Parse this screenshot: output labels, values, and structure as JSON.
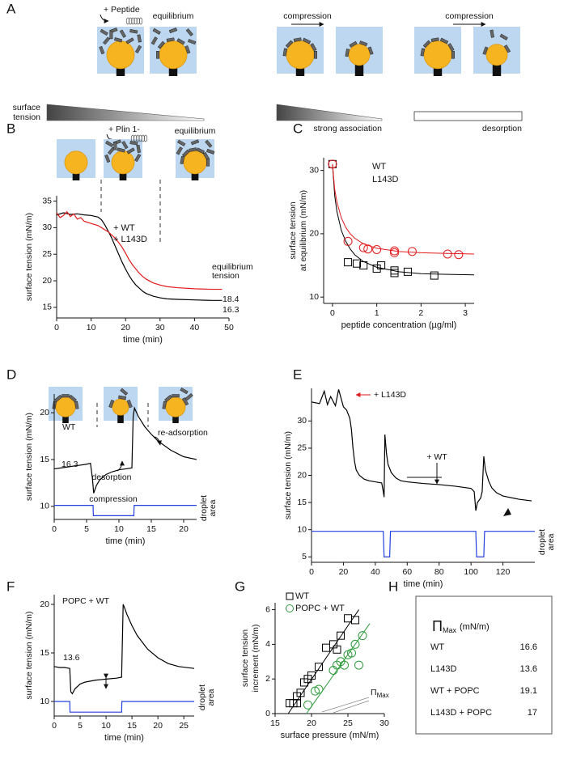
{
  "panel_labels": [
    "A",
    "B",
    "C",
    "D",
    "E",
    "F",
    "G",
    "H"
  ],
  "diagram_A": {
    "peptide": "+ Peptide",
    "equilibrium": "equilibrium",
    "surface_tension": [
      "surface",
      "tension"
    ],
    "compression_1": "compression",
    "compression_2": "compression",
    "strong_association": "strong association",
    "desorption": "desorption"
  },
  "diagram_B": {
    "plin": "+ Plin 1-",
    "equilibrium": "equilibrium"
  },
  "chart_data": [
    {
      "type": "line",
      "xlabel": "time (min)",
      "ylabel": [
        "surface tension (mN/m)"
      ],
      "xlim": [
        0,
        50
      ],
      "ylim": [
        13,
        36
      ],
      "xticks": [
        0,
        10,
        20,
        30,
        40,
        50
      ],
      "yticks": [
        15,
        20,
        25,
        30,
        35
      ],
      "series": [
        {
          "name": "+ WT",
          "color": "#000000",
          "x": [
            0,
            2,
            4,
            6,
            8,
            10,
            12,
            13,
            14,
            15,
            16,
            17,
            18,
            19,
            20,
            21,
            22,
            23,
            24,
            25,
            26,
            28,
            30,
            32,
            35,
            40,
            45,
            48
          ],
          "values": [
            32.4,
            32.8,
            32.5,
            32.6,
            32.4,
            32.3,
            32.0,
            31.5,
            30.5,
            29.3,
            28,
            26.5,
            25,
            23.5,
            22.2,
            21,
            20,
            19.2,
            18.6,
            18,
            17.6,
            17.1,
            16.8,
            16.6,
            16.5,
            16.4,
            16.3,
            16.3
          ]
        },
        {
          "name": "+ L143D",
          "color": "#e31a1c",
          "x": [
            0,
            1,
            2,
            3,
            4,
            5,
            6,
            7,
            8,
            10,
            12,
            13,
            14,
            15,
            16,
            17,
            18,
            19,
            20,
            21,
            22,
            23,
            24,
            25,
            26,
            28,
            30,
            32,
            35,
            40,
            45,
            48
          ],
          "values": [
            32.8,
            31.9,
            32.3,
            33.0,
            32.1,
            32.6,
            31.6,
            31.9,
            31.2,
            30.8,
            30.4,
            30.0,
            29.6,
            29.2,
            28.6,
            28,
            27.2,
            26.3,
            25.2,
            24,
            23,
            22.2,
            21.4,
            20.8,
            20.3,
            19.6,
            19.2,
            18.9,
            18.7,
            18.5,
            18.4,
            18.4
          ]
        }
      ],
      "annotations": [
        {
          "text": [
            "equilibrium",
            "tension"
          ],
          "color": "#000000"
        },
        {
          "text": 18.4,
          "color": "#e31a1c"
        },
        {
          "text": 16.3,
          "color": "#000000"
        }
      ]
    },
    {
      "type": "scatter",
      "xlabel": "peptide concentration (µg/ml)",
      "ylabel": [
        "surface tension",
        "at equilibrium (mN/m)"
      ],
      "xlim": [
        -0.2,
        3.2
      ],
      "ylim": [
        9,
        32
      ],
      "xticks": [
        0,
        1,
        2,
        3
      ],
      "yticks": [
        10,
        20,
        30
      ],
      "legend_markers": false,
      "series": [
        {
          "name": "WT",
          "color": "#000000",
          "marker": "square",
          "x": [
            0,
            0.35,
            0.55,
            0.7,
            1.0,
            1.1,
            1.4,
            1.4,
            1.7,
            2.3
          ],
          "values": [
            31,
            15.5,
            15.3,
            15,
            14.5,
            15,
            14.2,
            13.8,
            14.0,
            13.4
          ],
          "fit": {
            "x": [
              0,
              0.05,
              0.1,
              0.2,
              0.3,
              0.4,
              0.5,
              0.7,
              1,
              1.5,
              2,
              2.5,
              3.2
            ],
            "values": [
              31,
              26,
              23.5,
              20.5,
              18.8,
              17.6,
              16.7,
              15.6,
              14.7,
              14.0,
              13.7,
              13.6,
              13.5
            ]
          }
        },
        {
          "name": "L143D",
          "color": "#e31a1c",
          "marker": "circle",
          "x": [
            0,
            0.35,
            0.7,
            0.8,
            1.0,
            1.4,
            1.4,
            1.8,
            2.6,
            2.85
          ],
          "values": [
            31,
            18.8,
            17.8,
            17.6,
            17.5,
            17.3,
            17.0,
            17.2,
            16.8,
            16.7
          ],
          "fit": {
            "x": [
              0,
              0.05,
              0.1,
              0.2,
              0.3,
              0.4,
              0.5,
              0.7,
              1,
              1.5,
              2,
              2.5,
              3.2
            ],
            "values": [
              31,
              27,
              25,
              22.5,
              21,
              20,
              19.3,
              18.4,
              17.7,
              17.2,
              17.0,
              16.9,
              16.8
            ]
          }
        }
      ]
    },
    {
      "type": "line",
      "xlabel": "time (min)",
      "ylabel": [
        "surface tension (mN/m)"
      ],
      "xlim": [
        0,
        22
      ],
      "ylim": [
        8.6,
        22
      ],
      "xticks": [
        0,
        5,
        10,
        15,
        20
      ],
      "yticks": [
        10,
        15,
        20
      ],
      "series": [
        {
          "color": "#000000",
          "x": [
            0,
            1,
            2,
            3,
            4,
            5,
            5.6,
            5.9,
            6.1,
            6.5,
            7,
            8,
            9,
            10,
            11,
            12,
            12.2,
            12.4,
            13,
            14,
            15,
            16,
            18,
            20,
            22
          ],
          "values": [
            14.0,
            14.1,
            14.2,
            14.3,
            14.4,
            14.5,
            14.6,
            13.0,
            11.4,
            12.2,
            12.8,
            13.4,
            13.7,
            13.9,
            14.0,
            14.1,
            19.6,
            20.5,
            19.6,
            18.5,
            17.7,
            17.0,
            16.0,
            15.3,
            15.0
          ]
        },
        {
          "color": "#2540e0",
          "x": [
            0,
            6,
            6.05,
            12.3,
            12.35,
            22
          ],
          "values": [
            10.1,
            10.1,
            9.0,
            9.0,
            10.1,
            10.1
          ]
        }
      ],
      "annotations": [
        {
          "text": "WT",
          "color": "#000000"
        },
        {
          "text": 16.3,
          "color": "#000000"
        },
        {
          "text": "desorption",
          "color": "#000000"
        },
        {
          "text": "re-adsorption",
          "color": "#000000"
        },
        {
          "text": "compression",
          "color": "#2540e0"
        },
        {
          "text": [
            "droplet",
            "area"
          ],
          "color": "#2540e0"
        }
      ]
    },
    {
      "type": "line",
      "xlabel": "time (min)",
      "ylabel": [
        "surface tension (mN/m)"
      ],
      "xlim": [
        0,
        140
      ],
      "ylim": [
        4,
        36
      ],
      "xticks": [
        0,
        20,
        40,
        60,
        80,
        100,
        120
      ],
      "yticks": [
        5,
        10,
        15,
        20,
        25,
        30
      ],
      "series": [
        {
          "color": "#000000",
          "x": [
            0,
            5,
            8,
            10,
            12,
            15,
            17,
            20,
            22,
            24,
            25,
            26,
            27,
            28,
            30,
            33,
            36,
            40,
            44,
            45,
            45.5,
            46,
            47,
            48,
            50,
            53,
            56,
            60,
            70,
            80,
            90,
            100,
            102,
            103,
            104,
            106,
            107,
            108,
            109,
            111,
            113,
            116,
            120,
            130,
            138
          ],
          "values": [
            33.5,
            33.2,
            35.5,
            33.0,
            34.5,
            32.8,
            35.8,
            32.6,
            32.0,
            30.5,
            28.5,
            25,
            22.5,
            21,
            20,
            19.3,
            19.0,
            18.8,
            18.6,
            17.0,
            16.0,
            27.5,
            24,
            22,
            20.5,
            19.5,
            19.0,
            18.8,
            18.5,
            18.3,
            18.0,
            17.6,
            17.0,
            13.5,
            15.0,
            15.8,
            17,
            23.5,
            21,
            19,
            17.7,
            16.8,
            16.2,
            15.6,
            15.3
          ]
        },
        {
          "color": "#2540e0",
          "x": [
            0,
            45,
            45.5,
            49,
            49.5,
            103,
            103.5,
            108,
            108.5,
            140
          ],
          "values": [
            9.7,
            9.7,
            5,
            5,
            9.7,
            9.7,
            5,
            5,
            9.7,
            9.7
          ]
        }
      ],
      "annotations": [
        {
          "text": "+ L143D",
          "color": "#e31a1c"
        },
        {
          "text": "+ WT",
          "color": "#000000"
        },
        {
          "text": [
            "droplet",
            "area"
          ],
          "color": "#2540e0"
        }
      ]
    },
    {
      "type": "line",
      "xlabel": "time (min)",
      "ylabel": [
        "surface tension (mN/m)"
      ],
      "xlim": [
        0,
        27
      ],
      "ylim": [
        8.5,
        21
      ],
      "xticks": [
        0,
        5,
        10,
        15,
        20,
        25
      ],
      "yticks": [
        10,
        15,
        20
      ],
      "series": [
        {
          "color": "#000000",
          "x": [
            0,
            1,
            2,
            3,
            3.2,
            3.5,
            4,
            5,
            6,
            8,
            10,
            12,
            13,
            13.3,
            13.6,
            14,
            15,
            16,
            18,
            20,
            22,
            24,
            27
          ],
          "values": [
            13.6,
            13.5,
            13.5,
            13.4,
            11.0,
            10.8,
            11.3,
            11.8,
            12.0,
            12.2,
            12.3,
            12.4,
            12.5,
            20.0,
            19.6,
            19.0,
            17.8,
            16.8,
            15.4,
            14.5,
            13.9,
            13.6,
            13.4
          ]
        },
        {
          "color": "#2540e0",
          "x": [
            0,
            3,
            3.05,
            13,
            13.05,
            27
          ],
          "values": [
            10,
            10,
            8.9,
            8.9,
            10,
            10
          ]
        }
      ],
      "annotations": [
        {
          "text": "POPC + WT",
          "color": "#000000"
        },
        {
          "text": 13.6,
          "color": "#000000"
        },
        {
          "text": [
            "droplet",
            "area"
          ],
          "color": "#2540e0"
        }
      ]
    },
    {
      "type": "scatter",
      "xlabel": "surface pressure (mN/m)",
      "ylabel": [
        "surface tension",
        "increment (mN/m)"
      ],
      "xlim": [
        15,
        30
      ],
      "ylim": [
        0,
        6.4
      ],
      "xticks": [
        15,
        20,
        25,
        30
      ],
      "yticks": [
        0,
        2,
        4,
        6
      ],
      "legend_markers": true,
      "series": [
        {
          "name": "WT",
          "color": "#000000",
          "marker": "square",
          "x": [
            17,
            17.5,
            18,
            18,
            18.5,
            19,
            19.5,
            20,
            21,
            22,
            23,
            23.5,
            24,
            25,
            26
          ],
          "values": [
            0.6,
            0.6,
            1.0,
            0.6,
            1.2,
            1.8,
            2.0,
            2.2,
            2.7,
            3.8,
            4.0,
            3.7,
            4.5,
            5.5,
            5.4
          ],
          "fit": {
            "x": [
              16.8,
              26.5
            ],
            "values": [
              0,
              6
            ]
          }
        },
        {
          "name": "POPC + WT",
          "color": "#2e9b3c",
          "marker": "circle",
          "x": [
            19.5,
            20.5,
            21,
            23,
            23.5,
            24,
            24.5,
            25,
            25.5,
            26,
            26.5,
            27
          ],
          "values": [
            0.5,
            1.3,
            1.4,
            2.5,
            2.8,
            3.0,
            2.8,
            3.4,
            3.5,
            4.0,
            2.8,
            4.5
          ],
          "fit": {
            "x": [
              19.3,
              28
            ],
            "values": [
              0,
              5.2
            ]
          }
        }
      ],
      "annotations": [
        {
          "text": "Π",
          "sub": "Max",
          "color": "#000000"
        }
      ]
    }
  ],
  "table_H": {
    "header": {
      "symbol": "Π",
      "sub": "Max",
      "unit": "(mN/m)"
    },
    "rows": [
      {
        "label": "WT",
        "value": 16.6,
        "color": "#000000"
      },
      {
        "label": "L143D",
        "value": 13.6,
        "color": "#c8184a"
      },
      {
        "label": "WT + POPC",
        "value": 19.1,
        "color": "#2e9b3c"
      },
      {
        "label": "L143D + POPC",
        "value": 17,
        "color": "#2e9b3c"
      }
    ]
  }
}
